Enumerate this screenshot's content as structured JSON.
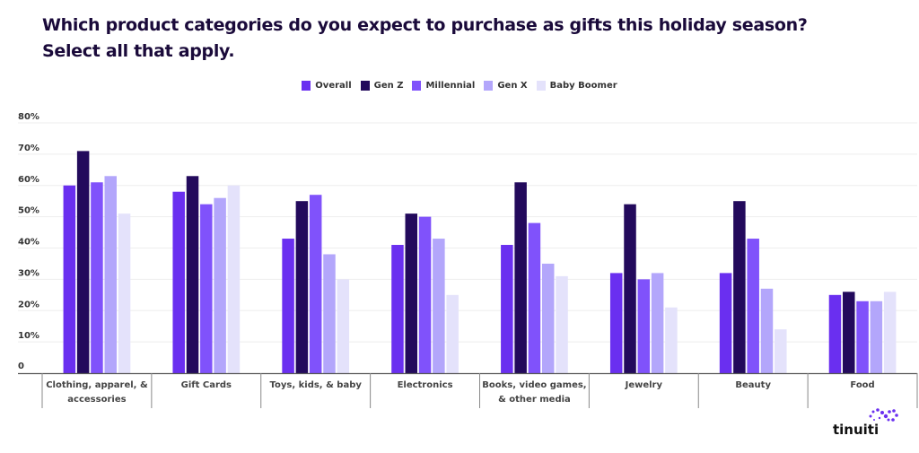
{
  "chart_data": {
    "type": "bar",
    "title": "Which product categories do you expect to purchase as gifts this holiday season?",
    "subtitle": "Select all that apply.",
    "xlabel": "",
    "ylabel": "",
    "ylim": [
      0,
      80
    ],
    "yticks": [
      0,
      10,
      20,
      30,
      40,
      50,
      60,
      70,
      80
    ],
    "ytick_labels": [
      "0",
      "10%",
      "20%",
      "30%",
      "40%",
      "50%",
      "60%",
      "70%",
      "80%"
    ],
    "grid": true,
    "legend_position": "top-center",
    "categories": [
      [
        "Clothing, apparel, &",
        "accessories"
      ],
      [
        "Gift Cards"
      ],
      [
        "Toys, kids, & baby"
      ],
      [
        "Electronics"
      ],
      [
        "Books, video games,",
        "& other media"
      ],
      [
        "Jewelry"
      ],
      [
        "Beauty"
      ],
      [
        "Food"
      ]
    ],
    "series": [
      {
        "name": "Overall",
        "color": "#6a2ff0",
        "values": [
          60,
          58,
          43,
          41,
          41,
          32,
          32,
          25
        ]
      },
      {
        "name": "Gen Z",
        "color": "#230a5c",
        "values": [
          71,
          63,
          55,
          51,
          61,
          54,
          55,
          26
        ]
      },
      {
        "name": "Millennial",
        "color": "#8052fb",
        "values": [
          61,
          54,
          57,
          50,
          48,
          30,
          43,
          23
        ]
      },
      {
        "name": "Gen X",
        "color": "#b3a6fb",
        "values": [
          63,
          56,
          38,
          43,
          35,
          32,
          27,
          23
        ]
      },
      {
        "name": "Baby Boomer",
        "color": "#e4e2fb",
        "values": [
          51,
          60,
          30,
          25,
          31,
          21,
          14,
          26
        ]
      }
    ]
  },
  "brand": {
    "name": "tinuiti",
    "accent": "#6a2ff0"
  }
}
